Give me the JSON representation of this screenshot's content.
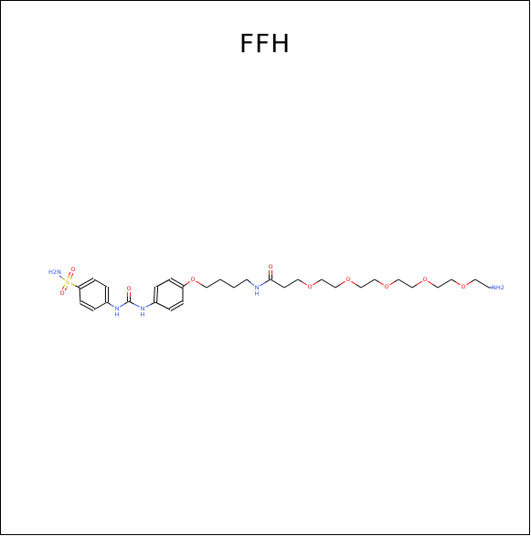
{
  "title": "FFH",
  "colors": {
    "carbon": "#000000",
    "oxygen": "#ff0d0d",
    "nitrogen": "#3050f8",
    "sulfur": "#ccaa00"
  },
  "atoms": [
    {
      "id": "N1",
      "label": "H2N",
      "element": "N"
    },
    {
      "id": "S",
      "label": "S",
      "element": "S"
    },
    {
      "id": "O1",
      "label": "O",
      "element": "O"
    },
    {
      "id": "O2",
      "label": "O",
      "element": "O"
    },
    {
      "id": "Nu1",
      "label": "N\nH",
      "element": "N"
    },
    {
      "id": "Ou",
      "label": "O",
      "element": "O"
    },
    {
      "id": "Nu2",
      "label": "N\nH",
      "element": "N"
    },
    {
      "id": "Oe",
      "label": "O",
      "element": "O"
    },
    {
      "id": "Na",
      "label": "N\nH",
      "element": "N"
    },
    {
      "id": "Oa",
      "label": "O",
      "element": "O"
    },
    {
      "id": "Op1",
      "label": "O",
      "element": "O"
    },
    {
      "id": "Op2",
      "label": "O",
      "element": "O"
    },
    {
      "id": "Op3",
      "label": "O",
      "element": "O"
    },
    {
      "id": "Op4",
      "label": "O",
      "element": "O"
    },
    {
      "id": "Op5",
      "label": "O",
      "element": "O"
    },
    {
      "id": "N2",
      "label": "NH2",
      "element": "N"
    }
  ]
}
